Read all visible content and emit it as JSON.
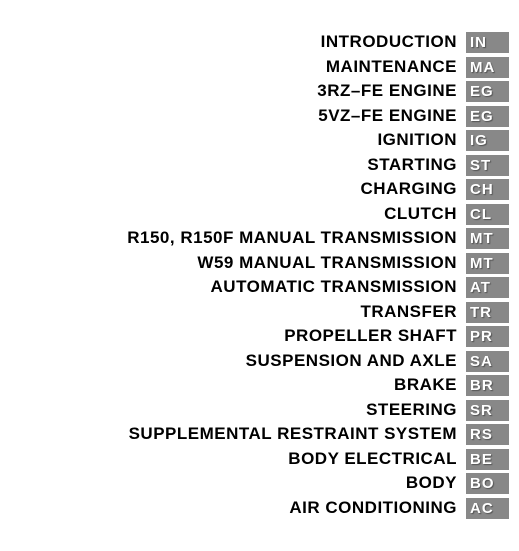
{
  "toc": {
    "items": [
      {
        "title": "INTRODUCTION",
        "code": "IN"
      },
      {
        "title": "MAINTENANCE",
        "code": "MA"
      },
      {
        "title": "3RZ–FE ENGINE",
        "code": "EG"
      },
      {
        "title": "5VZ–FE ENGINE",
        "code": "EG"
      },
      {
        "title": "IGNITION",
        "code": "IG"
      },
      {
        "title": "STARTING",
        "code": "ST"
      },
      {
        "title": "CHARGING",
        "code": "CH"
      },
      {
        "title": "CLUTCH",
        "code": "CL"
      },
      {
        "title": "R150, R150F MANUAL TRANSMISSION",
        "code": "MT"
      },
      {
        "title": "W59 MANUAL TRANSMISSION",
        "code": "MT"
      },
      {
        "title": "AUTOMATIC TRANSMISSION",
        "code": "AT"
      },
      {
        "title": "TRANSFER",
        "code": "TR"
      },
      {
        "title": "PROPELLER SHAFT",
        "code": "PR"
      },
      {
        "title": "SUSPENSION AND AXLE",
        "code": "SA"
      },
      {
        "title": "BRAKE",
        "code": "BR"
      },
      {
        "title": "STEERING",
        "code": "SR"
      },
      {
        "title": "SUPPLEMENTAL RESTRAINT SYSTEM",
        "code": "RS"
      },
      {
        "title": "BODY ELECTRICAL",
        "code": "BE"
      },
      {
        "title": "BODY",
        "code": "BO"
      },
      {
        "title": "AIR CONDITIONING",
        "code": "AC"
      }
    ]
  },
  "styles": {
    "background_color": "#ffffff",
    "text_color": "#000000",
    "badge_bg_color": "#888888",
    "badge_text_color": "#ffffff",
    "title_fontsize": 17,
    "badge_fontsize": 15,
    "row_height": 24.5,
    "badge_width": 44
  }
}
